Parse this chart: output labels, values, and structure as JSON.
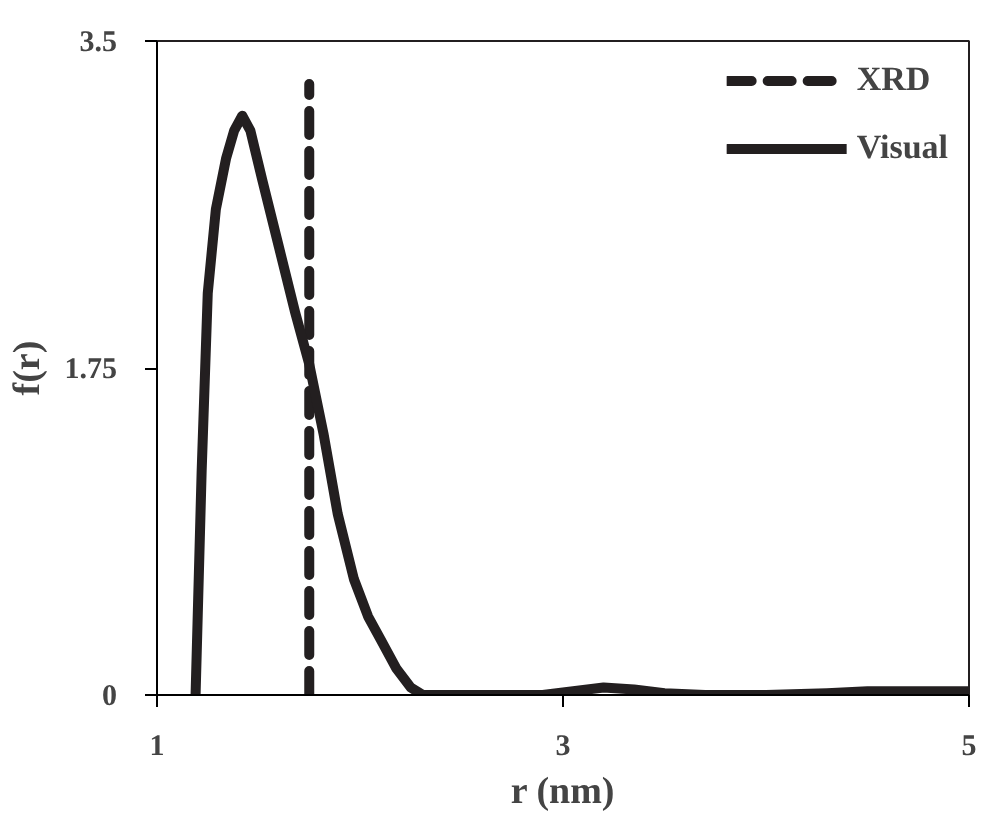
{
  "chart_data": {
    "type": "line",
    "xlabel": "r (nm)",
    "ylabel": "f(r)",
    "xlim": [
      1,
      5
    ],
    "ylim": [
      0,
      3.5
    ],
    "xticks": [
      1,
      3,
      5
    ],
    "yticks": [
      0,
      1.75,
      3.5
    ],
    "grid": false,
    "legend": "top right",
    "marker": "none",
    "series": [
      {
        "name": "XRD",
        "color": "#231f20",
        "line_style": "dashed",
        "x": [
          1.75,
          1.75
        ],
        "values": [
          0,
          3.27
        ]
      },
      {
        "name": "Visual",
        "color": "#231f20",
        "line_style": "solid",
        "x": [
          1.19,
          1.22,
          1.25,
          1.29,
          1.34,
          1.38,
          1.42,
          1.46,
          1.52,
          1.6,
          1.68,
          1.75,
          1.82,
          1.89,
          1.97,
          2.04,
          2.1,
          2.18,
          2.25,
          2.31,
          2.6,
          2.9,
          3.05,
          3.2,
          3.35,
          3.5,
          3.7,
          4.0,
          4.3,
          4.5,
          4.8,
          5.0
        ],
        "values": [
          0,
          1.2,
          2.15,
          2.6,
          2.87,
          3.02,
          3.1,
          3.02,
          2.75,
          2.4,
          2.05,
          1.77,
          1.4,
          0.97,
          0.62,
          0.42,
          0.3,
          0.14,
          0.04,
          0,
          0,
          0,
          0.02,
          0.04,
          0.03,
          0.01,
          0,
          0,
          0.01,
          0.02,
          0.02,
          0.02
        ]
      }
    ]
  }
}
